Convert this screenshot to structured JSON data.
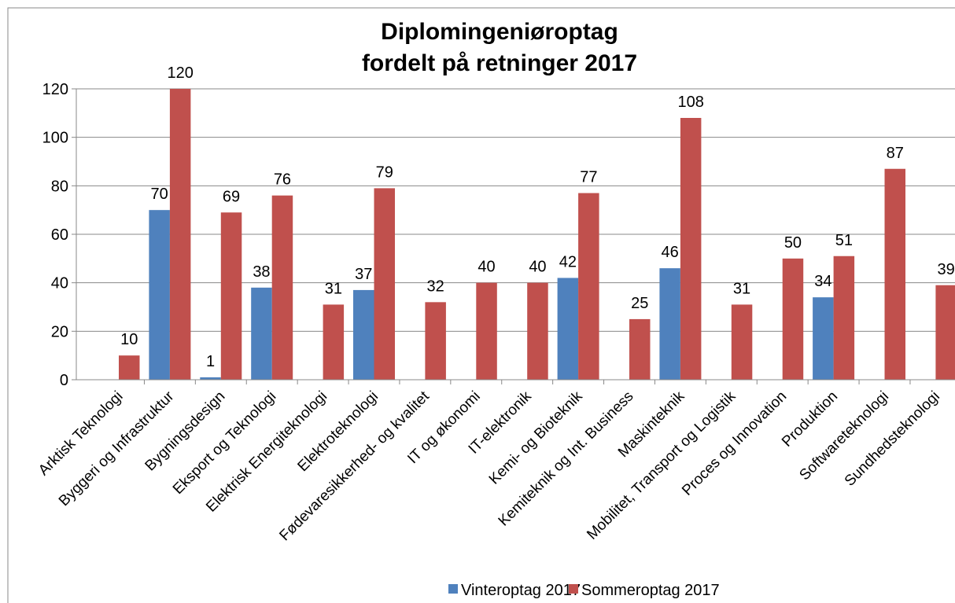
{
  "chart_data": {
    "type": "bar",
    "title": [
      "Diplomingeniøroptag",
      "fordelt på retninger 2017"
    ],
    "categories": [
      "Arktisk Teknologi",
      "Byggeri og Infrastruktur",
      "Bygningsdesign",
      "Eksport og Teknologi",
      "Elektrisk Energiteknologi",
      "Elektroteknologi",
      "Fødevaresikkerhed- og kvalitet",
      "IT og økonomi",
      "IT-elektronik",
      "Kemi- og Bioteknik",
      "Kemiteknik og Int. Business",
      "Maskinteknik",
      "Mobilitet, Transport og Logistik",
      "Proces og Innovation",
      "Produktion",
      "Softwareteknologi",
      "Sundhedsteknologi"
    ],
    "series": [
      {
        "name": "Vinteroptag 2017",
        "color": "#4f81bd",
        "values": [
          null,
          70,
          1,
          38,
          null,
          37,
          null,
          null,
          null,
          42,
          null,
          46,
          null,
          null,
          34,
          null,
          null
        ]
      },
      {
        "name": "Sommeroptag 2017",
        "color": "#c0504d",
        "values": [
          10,
          120,
          69,
          76,
          31,
          79,
          32,
          40,
          40,
          77,
          25,
          108,
          31,
          50,
          51,
          87,
          39
        ]
      }
    ],
    "ylim": [
      0,
      120
    ],
    "yticks": [
      0,
      20,
      40,
      60,
      80,
      100,
      120
    ],
    "grid": true,
    "legend": "bottom"
  }
}
